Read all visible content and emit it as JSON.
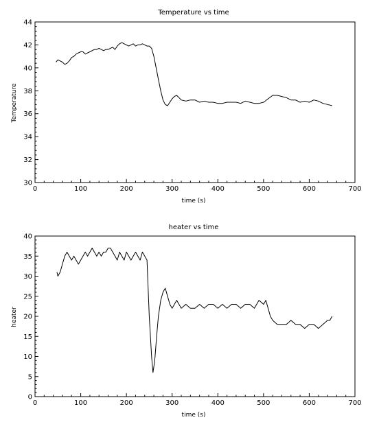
{
  "chart_data": [
    {
      "type": "line",
      "title": "Temperature vs time",
      "xlabel": "time (s)",
      "ylabel": "Temperature",
      "xlim": [
        0,
        700
      ],
      "ylim": [
        30,
        44
      ],
      "x_ticks": [
        0,
        100,
        200,
        300,
        400,
        500,
        600,
        700
      ],
      "y_ticks": [
        30,
        32,
        34,
        36,
        38,
        40,
        42,
        44
      ],
      "grid": false,
      "series": [
        {
          "color": "#000000",
          "x": [
            46,
            50,
            55,
            60,
            65,
            70,
            75,
            80,
            85,
            90,
            95,
            100,
            105,
            110,
            115,
            120,
            125,
            130,
            135,
            140,
            145,
            150,
            155,
            160,
            165,
            170,
            175,
            180,
            185,
            190,
            195,
            200,
            205,
            210,
            215,
            220,
            225,
            230,
            235,
            240,
            245,
            250,
            255,
            260,
            265,
            270,
            275,
            280,
            285,
            290,
            295,
            300,
            305,
            310,
            315,
            320,
            330,
            340,
            350,
            360,
            370,
            380,
            390,
            400,
            410,
            420,
            430,
            440,
            450,
            460,
            470,
            480,
            490,
            500,
            510,
            520,
            530,
            540,
            550,
            560,
            570,
            580,
            590,
            600,
            610,
            620,
            630,
            640,
            650
          ],
          "y": [
            40.5,
            40.7,
            40.6,
            40.5,
            40.3,
            40.4,
            40.6,
            40.9,
            41.0,
            41.2,
            41.3,
            41.4,
            41.4,
            41.2,
            41.3,
            41.4,
            41.5,
            41.6,
            41.6,
            41.7,
            41.6,
            41.5,
            41.6,
            41.6,
            41.7,
            41.8,
            41.6,
            41.9,
            42.1,
            42.2,
            42.1,
            42.0,
            41.9,
            42.0,
            42.1,
            41.9,
            42.0,
            42.0,
            42.1,
            42.0,
            41.9,
            41.9,
            41.7,
            41.0,
            40.0,
            39.0,
            38.0,
            37.2,
            36.8,
            36.7,
            37.0,
            37.3,
            37.5,
            37.6,
            37.4,
            37.2,
            37.1,
            37.2,
            37.2,
            37.0,
            37.1,
            37.0,
            37.0,
            36.9,
            36.9,
            37.0,
            37.0,
            37.0,
            36.9,
            37.1,
            37.0,
            36.9,
            36.9,
            37.0,
            37.3,
            37.6,
            37.6,
            37.5,
            37.4,
            37.2,
            37.2,
            37.0,
            37.1,
            37.0,
            37.2,
            37.1,
            36.9,
            36.8,
            36.7
          ]
        }
      ]
    },
    {
      "type": "line",
      "title": "heater vs time",
      "xlabel": "time (s)",
      "ylabel": "heater",
      "xlim": [
        0,
        700
      ],
      "ylim": [
        0,
        40
      ],
      "x_ticks": [
        0,
        100,
        200,
        300,
        400,
        500,
        600,
        700
      ],
      "y_ticks": [
        0,
        5,
        10,
        15,
        20,
        25,
        30,
        35,
        40
      ],
      "grid": false,
      "series": [
        {
          "color": "#000000",
          "x": [
            48,
            50,
            55,
            60,
            65,
            70,
            75,
            80,
            85,
            90,
            95,
            100,
            105,
            110,
            115,
            120,
            125,
            130,
            135,
            140,
            145,
            150,
            155,
            160,
            165,
            170,
            175,
            180,
            185,
            190,
            195,
            200,
            205,
            210,
            215,
            220,
            225,
            230,
            235,
            240,
            245,
            250,
            255,
            258,
            262,
            266,
            270,
            275,
            280,
            285,
            290,
            295,
            300,
            305,
            310,
            315,
            320,
            330,
            340,
            350,
            360,
            370,
            380,
            390,
            400,
            410,
            420,
            430,
            440,
            450,
            460,
            470,
            480,
            490,
            500,
            505,
            510,
            515,
            520,
            530,
            540,
            550,
            560,
            570,
            580,
            590,
            600,
            610,
            620,
            630,
            640,
            645,
            650
          ],
          "y": [
            31,
            30,
            31,
            33,
            35,
            36,
            35,
            34,
            35,
            34,
            33,
            34,
            35,
            36,
            35,
            36,
            37,
            36,
            35,
            36,
            35,
            36,
            36,
            37,
            37,
            36,
            35,
            34,
            36,
            35,
            34,
            36,
            35,
            34,
            35,
            36,
            35,
            34,
            36,
            35,
            34,
            20,
            10,
            6,
            9,
            15,
            20,
            24,
            26,
            27,
            25,
            23,
            22,
            23,
            24,
            23,
            22,
            23,
            22,
            22,
            23,
            22,
            23,
            23,
            22,
            23,
            22,
            23,
            23,
            22,
            23,
            23,
            22,
            24,
            23,
            24,
            22,
            20,
            19,
            18,
            18,
            18,
            19,
            18,
            18,
            17,
            18,
            18,
            17,
            18,
            19,
            19,
            20
          ]
        }
      ]
    }
  ]
}
